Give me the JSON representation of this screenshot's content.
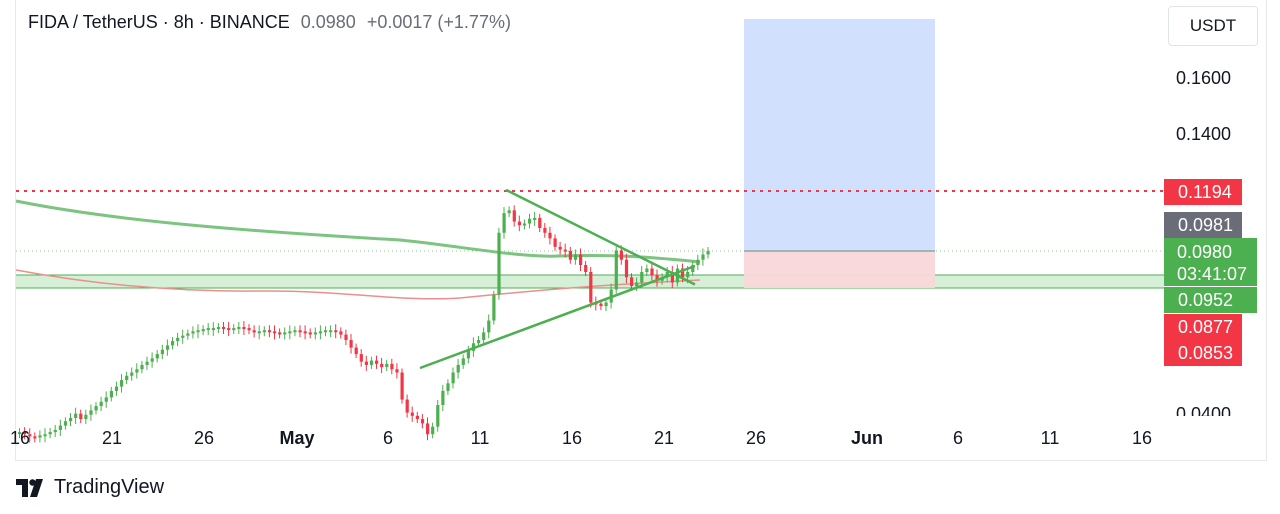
{
  "header": {
    "symbol": "FIDA / TetherUS · 8h · BINANCE",
    "last_price": "0.0980",
    "change": "+0.0017 (+1.77%)"
  },
  "currency_button": "USDT",
  "y_axis_ticks": [
    "0.1600",
    "0.1400",
    "0.0400"
  ],
  "x_axis_ticks": [
    {
      "label": "16",
      "bold": false
    },
    {
      "label": "21",
      "bold": false
    },
    {
      "label": "26",
      "bold": false
    },
    {
      "label": "May",
      "bold": true
    },
    {
      "label": "6",
      "bold": false
    },
    {
      "label": "11",
      "bold": false
    },
    {
      "label": "16",
      "bold": false
    },
    {
      "label": "21",
      "bold": false
    },
    {
      "label": "26",
      "bold": false
    },
    {
      "label": "Jun",
      "bold": true
    },
    {
      "label": "6",
      "bold": false
    },
    {
      "label": "11",
      "bold": false
    },
    {
      "label": "16",
      "bold": false
    }
  ],
  "price_badges": {
    "target": "0.1194",
    "previous_close": "0.0981",
    "last": "0.0980",
    "countdown": "03:41:07",
    "support": "0.0952",
    "stop_high": "0.0877",
    "stop_low": "0.0853"
  },
  "footer": {
    "brand": "TradingView"
  },
  "colors": {
    "up": "#4caf50",
    "down": "#f23645",
    "target_zone": "#d1e0fc",
    "stop_zone": "#f9d7d9",
    "support_zone": "#d6efd7",
    "ema_long": "#7cc47f",
    "ema_short": "#e9908e",
    "triangle": "#4caf50"
  },
  "chart_data": {
    "type": "candlestick",
    "symbol": "FIDA/USDT",
    "interval": "8h",
    "exchange": "BINANCE",
    "candles_close_approx": [
      0.078,
      0.0778,
      0.0776,
      0.0775,
      0.0777,
      0.0778,
      0.078,
      0.0782,
      0.0786,
      0.079,
      0.0793,
      0.0797,
      0.0792,
      0.0796,
      0.08,
      0.0804,
      0.0808,
      0.0812,
      0.0818,
      0.0822,
      0.0828,
      0.0832,
      0.0835,
      0.0838,
      0.0842,
      0.0845,
      0.0848,
      0.0852,
      0.0856,
      0.086,
      0.0864,
      0.0867,
      0.0869,
      0.0871,
      0.0873,
      0.0874,
      0.0875,
      0.0876,
      0.0876,
      0.0877,
      0.0876,
      0.0875,
      0.0876,
      0.0877,
      0.0876,
      0.0874,
      0.0872,
      0.0873,
      0.0874,
      0.0873,
      0.0872,
      0.0871,
      0.0872,
      0.0873,
      0.0874,
      0.0873,
      0.0872,
      0.0871,
      0.0872,
      0.0873,
      0.0874,
      0.0874,
      0.0873,
      0.087,
      0.0865,
      0.0858,
      0.0852,
      0.0845,
      0.0842,
      0.0846,
      0.0843,
      0.084,
      0.0843,
      0.0838,
      0.0835,
      0.081,
      0.0798,
      0.0795,
      0.0792,
      0.0788,
      0.0778,
      0.0785,
      0.0805,
      0.0818,
      0.0825,
      0.0835,
      0.0842,
      0.0848,
      0.0855,
      0.0862,
      0.0865,
      0.0872,
      0.0895,
      0.0955,
      0.1045,
      0.1115,
      0.1125,
      0.1085,
      0.1072,
      0.1078,
      0.1095,
      0.1098,
      0.1062,
      0.1045,
      0.1025,
      0.0995,
      0.0985,
      0.098,
      0.0975,
      0.0978,
      0.0972,
      0.0968,
      0.0945,
      0.0942,
      0.0935,
      0.0945,
      0.0958,
      0.0982,
      0.0975,
      0.0965,
      0.096,
      0.0962,
      0.0968,
      0.097,
      0.0966,
      0.0963,
      0.0965,
      0.0968,
      0.0962,
      0.097,
      0.0965,
      0.0968,
      0.0972,
      0.0975,
      0.0978,
      0.098
    ],
    "horizontal_lines": [
      {
        "label": "target",
        "value": 0.1194,
        "style": "dotted",
        "color": "#f23645"
      }
    ],
    "zones": {
      "target_zone": {
        "from": 0.0981,
        "to": 0.175
      },
      "stop_zone": {
        "from": 0.0952,
        "to": 0.0981
      },
      "support_zone": {
        "from": 0.0945,
        "to": 0.0965
      }
    },
    "triangle_pattern": {
      "upper_start": 0.1198,
      "upper_end": 0.0962,
      "lower_start": 0.0772,
      "lower_end": 0.0962
    },
    "y_axis": {
      "ticks": [
        0.16,
        0.14,
        0.04
      ]
    },
    "x_axis_labels": [
      "16",
      "21",
      "26",
      "May",
      "6",
      "11",
      "16",
      "21",
      "26",
      "Jun",
      "6",
      "11",
      "16"
    ]
  }
}
